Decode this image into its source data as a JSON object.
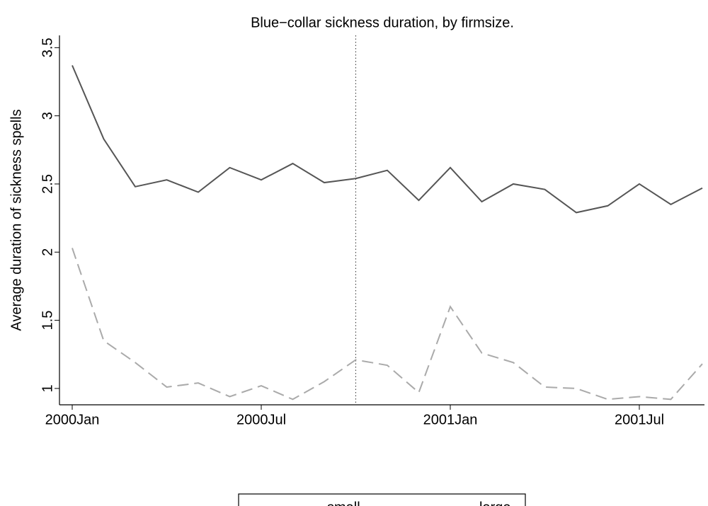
{
  "chart_data": {
    "type": "line",
    "title": "Blue−collar sickness duration, by firmsize.",
    "y_label": "Average duration of sickness spells",
    "categories": [
      "2000Jan",
      null,
      null,
      null,
      null,
      null,
      "2000Jul",
      null,
      null,
      null,
      null,
      null,
      "2001Jan",
      null,
      null,
      null,
      null,
      null,
      "2001Jul",
      null,
      null
    ],
    "reference_line_index": 9,
    "series": [
      {
        "name": "small",
        "color": "#555555",
        "dash": "solid",
        "values": [
          3.37,
          2.83,
          2.48,
          2.53,
          2.44,
          2.62,
          2.53,
          2.65,
          2.51,
          2.54,
          2.6,
          2.38,
          2.62,
          2.37,
          2.5,
          2.46,
          2.29,
          2.34,
          2.5,
          2.35,
          2.47
        ]
      },
      {
        "name": "large",
        "color": "#aaaaaa",
        "dash": "dashed",
        "values": [
          2.03,
          1.35,
          1.19,
          1.01,
          1.04,
          0.94,
          1.02,
          0.92,
          1.05,
          1.21,
          1.17,
          0.97,
          1.6,
          1.26,
          1.19,
          1.01,
          1.0,
          0.92,
          0.94,
          0.92,
          1.18
        ]
      }
    ],
    "ylim": [
      0.88,
      3.59
    ],
    "yticks": [
      1,
      1.5,
      2,
      2.5,
      3,
      3.5
    ],
    "grid": false,
    "legend": "bottom"
  }
}
